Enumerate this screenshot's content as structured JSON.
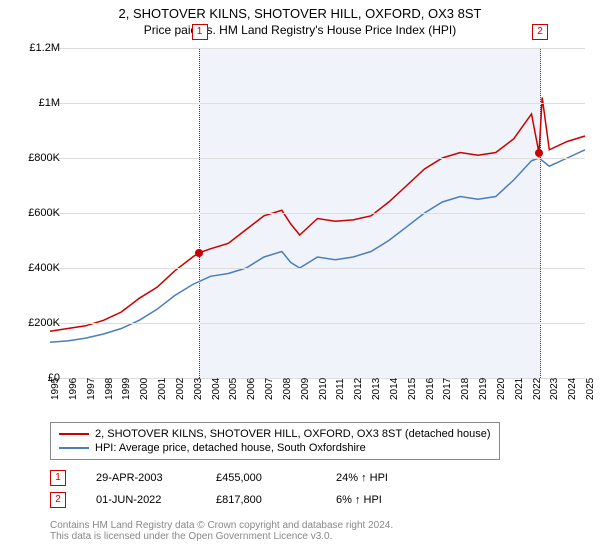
{
  "title": "2, SHOTOVER KILNS, SHOTOVER HILL, OXFORD, OX3 8ST",
  "subtitle": "Price paid vs. HM Land Registry's House Price Index (HPI)",
  "chart": {
    "type": "line",
    "background_color": "#ffffff",
    "grid_color": "#dddddd",
    "axis_color": "#888888",
    "ylim": [
      0,
      1200000
    ],
    "ytick_step": 200000,
    "y_ticks": [
      "£0",
      "£200K",
      "£400K",
      "£600K",
      "£800K",
      "£1M",
      "£1.2M"
    ],
    "x_years": [
      1995,
      1996,
      1997,
      1998,
      1999,
      2000,
      2001,
      2002,
      2003,
      2004,
      2005,
      2006,
      2007,
      2008,
      2009,
      2010,
      2011,
      2012,
      2013,
      2014,
      2015,
      2016,
      2017,
      2018,
      2019,
      2020,
      2021,
      2022,
      2023,
      2024,
      2025
    ],
    "highlight_band": {
      "start_year": 2003.33,
      "end_year": 2022.42,
      "fill": "#dde6f5",
      "border": "#cc0000"
    },
    "series": [
      {
        "name": "property",
        "color": "#cc0000",
        "width": 1.5,
        "points": [
          [
            1995,
            170000
          ],
          [
            1996,
            180000
          ],
          [
            1997,
            190000
          ],
          [
            1998,
            210000
          ],
          [
            1999,
            240000
          ],
          [
            2000,
            290000
          ],
          [
            2001,
            330000
          ],
          [
            2002,
            390000
          ],
          [
            2003,
            440000
          ],
          [
            2003.33,
            455000
          ],
          [
            2004,
            470000
          ],
          [
            2005,
            490000
          ],
          [
            2006,
            540000
          ],
          [
            2007,
            590000
          ],
          [
            2008,
            610000
          ],
          [
            2008.5,
            560000
          ],
          [
            2009,
            520000
          ],
          [
            2010,
            580000
          ],
          [
            2011,
            570000
          ],
          [
            2012,
            575000
          ],
          [
            2013,
            590000
          ],
          [
            2014,
            640000
          ],
          [
            2015,
            700000
          ],
          [
            2016,
            760000
          ],
          [
            2017,
            800000
          ],
          [
            2018,
            820000
          ],
          [
            2019,
            810000
          ],
          [
            2020,
            820000
          ],
          [
            2021,
            870000
          ],
          [
            2022,
            960000
          ],
          [
            2022.42,
            817800
          ],
          [
            2022.6,
            1020000
          ],
          [
            2023,
            830000
          ],
          [
            2024,
            860000
          ],
          [
            2025,
            880000
          ]
        ]
      },
      {
        "name": "hpi",
        "color": "#4a7ebb",
        "width": 1.5,
        "points": [
          [
            1995,
            130000
          ],
          [
            1996,
            135000
          ],
          [
            1997,
            145000
          ],
          [
            1998,
            160000
          ],
          [
            1999,
            180000
          ],
          [
            2000,
            210000
          ],
          [
            2001,
            250000
          ],
          [
            2002,
            300000
          ],
          [
            2003,
            340000
          ],
          [
            2004,
            370000
          ],
          [
            2005,
            380000
          ],
          [
            2006,
            400000
          ],
          [
            2007,
            440000
          ],
          [
            2008,
            460000
          ],
          [
            2008.5,
            420000
          ],
          [
            2009,
            400000
          ],
          [
            2010,
            440000
          ],
          [
            2011,
            430000
          ],
          [
            2012,
            440000
          ],
          [
            2013,
            460000
          ],
          [
            2014,
            500000
          ],
          [
            2015,
            550000
          ],
          [
            2016,
            600000
          ],
          [
            2017,
            640000
          ],
          [
            2018,
            660000
          ],
          [
            2019,
            650000
          ],
          [
            2020,
            660000
          ],
          [
            2021,
            720000
          ],
          [
            2022,
            790000
          ],
          [
            2022.42,
            800000
          ],
          [
            2023,
            770000
          ],
          [
            2024,
            800000
          ],
          [
            2025,
            830000
          ]
        ]
      }
    ],
    "markers": [
      {
        "id": "1",
        "year": 2003.33,
        "y_label_offset": -24,
        "dot_value": 455000,
        "dot_color": "#cc0000"
      },
      {
        "id": "2",
        "year": 2022.42,
        "y_label_offset": -24,
        "dot_value": 817800,
        "dot_color": "#cc0000"
      }
    ]
  },
  "legend": {
    "items": [
      {
        "color": "#cc0000",
        "label": "2, SHOTOVER KILNS, SHOTOVER HILL, OXFORD, OX3 8ST (detached house)"
      },
      {
        "color": "#4a7ebb",
        "label": "HPI: Average price, detached house, South Oxfordshire"
      }
    ]
  },
  "transactions": [
    {
      "id": "1",
      "date": "29-APR-2003",
      "price": "£455,000",
      "delta": "24% ↑ HPI"
    },
    {
      "id": "2",
      "date": "01-JUN-2022",
      "price": "£817,800",
      "delta": "6% ↑ HPI"
    }
  ],
  "footer": {
    "line1": "Contains HM Land Registry data © Crown copyright and database right 2024.",
    "line2": "This data is licensed under the Open Government Licence v3.0."
  }
}
